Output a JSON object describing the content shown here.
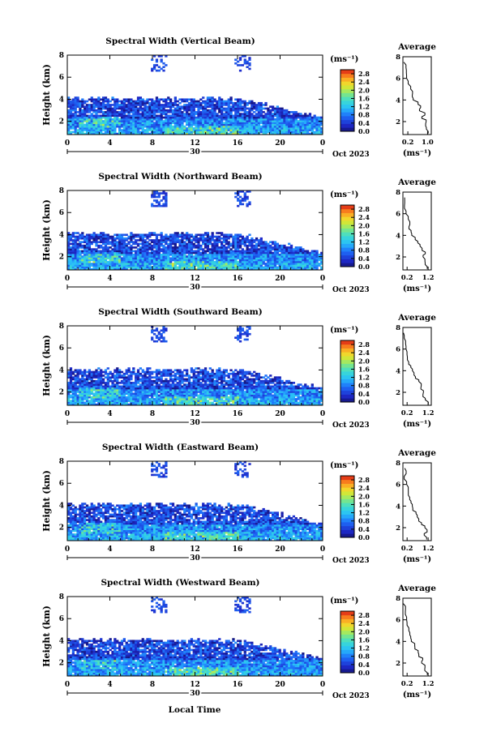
{
  "figure": {
    "xlabel": "Local Time",
    "date_label": "Oct 2023",
    "day_label": "30",
    "colorbar_unit": "(ms⁻¹)",
    "avg_title": "Average",
    "avg_unit": "(ms⁻¹)"
  },
  "chart_data": [
    {
      "type": "heatmap",
      "title": "Spectral Width (Vertical Beam)",
      "ylabel": "Height (km)",
      "x_ticks": [
        "0",
        "4",
        "8",
        "12",
        "16",
        "20",
        "0"
      ],
      "y_ticks": [
        "2",
        "4",
        "6",
        "8"
      ],
      "xlim": [
        0,
        24
      ],
      "ylim": [
        0.8,
        8
      ],
      "colorbar": {
        "ticks": [
          "0.0",
          "0.4",
          "0.8",
          "1.2",
          "1.6",
          "2.0",
          "2.4",
          "2.8"
        ],
        "range": [
          0,
          3.0
        ]
      },
      "average_profile": {
        "x_ticks": [
          "0.2",
          "1.0"
        ],
        "y_ticks": [
          "2",
          "4",
          "6",
          "8"
        ],
        "xlim": [
          0,
          1.15
        ],
        "ylim": [
          0.8,
          8
        ],
        "heights": [
          0.9,
          1.3,
          1.6,
          2.0,
          2.3,
          2.6,
          3.0,
          3.3,
          3.6,
          4.0,
          4.3,
          4.6,
          5.0,
          5.5,
          6.0,
          6.5,
          7.0,
          7.5
        ],
        "values": [
          1.02,
          0.92,
          0.88,
          0.95,
          0.8,
          0.88,
          0.7,
          0.72,
          0.58,
          0.45,
          0.4,
          0.35,
          0.3,
          0.22,
          0.16,
          0.12,
          0.1,
          0.08
        ]
      }
    },
    {
      "type": "heatmap",
      "title": "Spectral Width (Northward Beam)",
      "ylabel": "Height (km)",
      "x_ticks": [
        "0",
        "4",
        "8",
        "12",
        "16",
        "20",
        "0"
      ],
      "y_ticks": [
        "2",
        "4",
        "6",
        "8"
      ],
      "xlim": [
        0,
        24
      ],
      "ylim": [
        0.8,
        8
      ],
      "colorbar": {
        "ticks": [
          "0.0",
          "0.4",
          "0.8",
          "1.2",
          "1.6",
          "2.0",
          "2.4",
          "2.8"
        ],
        "range": [
          0,
          3.0
        ]
      },
      "average_profile": {
        "x_ticks": [
          "0.2",
          "1.2"
        ],
        "y_ticks": [
          "2",
          "4",
          "6",
          "8"
        ],
        "xlim": [
          0,
          1.35
        ],
        "ylim": [
          0.8,
          8
        ],
        "heights": [
          0.9,
          1.3,
          1.6,
          2.0,
          2.3,
          2.6,
          3.0,
          3.3,
          3.6,
          4.0,
          4.3,
          4.6,
          5.0,
          5.5,
          6.0,
          6.5,
          7.0,
          7.5
        ],
        "values": [
          1.15,
          1.05,
          1.1,
          0.95,
          1.02,
          0.88,
          0.8,
          0.66,
          0.58,
          0.48,
          0.4,
          0.34,
          0.28,
          0.2,
          0.15,
          0.12,
          0.09,
          0.07
        ]
      }
    },
    {
      "type": "heatmap",
      "title": "Spectral Width (Southward Beam)",
      "ylabel": "Height (km)",
      "x_ticks": [
        "0",
        "4",
        "8",
        "12",
        "16",
        "20",
        "0"
      ],
      "y_ticks": [
        "2",
        "4",
        "6",
        "8"
      ],
      "xlim": [
        0,
        24
      ],
      "ylim": [
        0.8,
        8
      ],
      "colorbar": {
        "ticks": [
          "0.0",
          "0.4",
          "0.8",
          "1.2",
          "1.6",
          "2.0",
          "2.4",
          "2.8"
        ],
        "range": [
          0,
          3.0
        ]
      },
      "average_profile": {
        "x_ticks": [
          "0.2",
          "1.2"
        ],
        "y_ticks": [
          "2",
          "4",
          "6",
          "8"
        ],
        "xlim": [
          0,
          1.35
        ],
        "ylim": [
          0.8,
          8
        ],
        "heights": [
          0.9,
          1.3,
          1.6,
          2.0,
          2.3,
          2.6,
          3.0,
          3.3,
          3.6,
          4.0,
          4.3,
          4.6,
          5.0,
          5.5,
          6.0,
          6.5,
          7.0,
          7.5
        ],
        "values": [
          1.2,
          1.08,
          0.98,
          0.95,
          0.85,
          0.82,
          0.7,
          0.62,
          0.55,
          0.42,
          0.38,
          0.3,
          0.25,
          0.2,
          0.14,
          0.12,
          0.1,
          0.08
        ]
      }
    },
    {
      "type": "heatmap",
      "title": "Spectral Width (Eastward Beam)",
      "ylabel": "Height (km)",
      "x_ticks": [
        "0",
        "4",
        "8",
        "12",
        "16",
        "20",
        "0"
      ],
      "y_ticks": [
        "2",
        "4",
        "6",
        "8"
      ],
      "xlim": [
        0,
        24
      ],
      "ylim": [
        0.8,
        8
      ],
      "colorbar": {
        "ticks": [
          "0.0",
          "0.4",
          "0.8",
          "1.2",
          "1.6",
          "2.0",
          "2.4",
          "2.8"
        ],
        "range": [
          0,
          3.0
        ]
      },
      "average_profile": {
        "x_ticks": [
          "0.2",
          "1.2"
        ],
        "y_ticks": [
          "2",
          "4",
          "6",
          "8"
        ],
        "xlim": [
          0,
          1.35
        ],
        "ylim": [
          0.8,
          8
        ],
        "heights": [
          0.9,
          1.3,
          1.6,
          2.0,
          2.3,
          2.6,
          3.0,
          3.3,
          3.6,
          4.0,
          4.3,
          4.6,
          5.0,
          5.5,
          6.0,
          6.5,
          7.0,
          7.5
        ],
        "values": [
          1.12,
          1.05,
          1.15,
          1.0,
          0.92,
          0.8,
          0.7,
          0.6,
          0.52,
          0.44,
          0.38,
          0.32,
          0.26,
          0.2,
          0.16,
          0.12,
          0.1,
          0.08
        ]
      }
    },
    {
      "type": "heatmap",
      "title": "Spectral Width (Westward Beam)",
      "ylabel": "Height (km)",
      "x_ticks": [
        "0",
        "4",
        "8",
        "12",
        "16",
        "20",
        "0"
      ],
      "y_ticks": [
        "2",
        "4",
        "6",
        "8"
      ],
      "xlim": [
        0,
        24
      ],
      "ylim": [
        0.8,
        8
      ],
      "colorbar": {
        "ticks": [
          "0.0",
          "0.4",
          "0.8",
          "1.2",
          "1.6",
          "2.0",
          "2.4",
          "2.8"
        ],
        "range": [
          0,
          3.0
        ]
      },
      "average_profile": {
        "x_ticks": [
          "0.2",
          "1.2"
        ],
        "y_ticks": [
          "2",
          "4",
          "6",
          "8"
        ],
        "xlim": [
          0,
          1.35
        ],
        "ylim": [
          0.8,
          8
        ],
        "heights": [
          0.9,
          1.3,
          1.6,
          2.0,
          2.3,
          2.6,
          3.0,
          3.3,
          3.6,
          4.0,
          4.3,
          4.6,
          5.0,
          5.5,
          6.0,
          6.5,
          7.0,
          7.5
        ],
        "values": [
          1.15,
          1.1,
          1.02,
          0.95,
          0.9,
          0.78,
          0.7,
          0.62,
          0.52,
          0.42,
          0.36,
          0.3,
          0.25,
          0.2,
          0.15,
          0.12,
          0.1,
          0.08
        ]
      }
    }
  ]
}
